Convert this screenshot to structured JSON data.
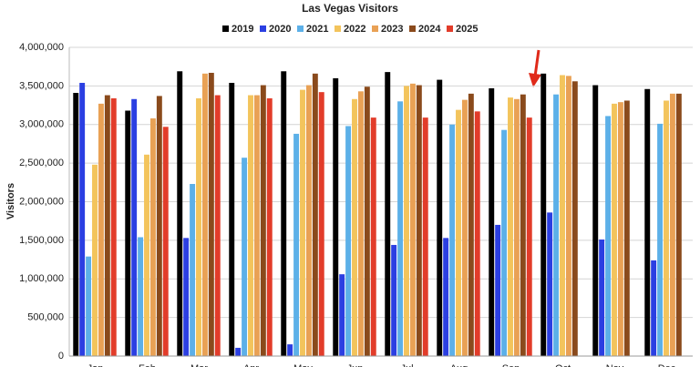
{
  "chart_data": {
    "type": "bar",
    "title": "Las Vegas Visitors",
    "y_label": "Visitors",
    "categories": [
      "Jan",
      "Feb",
      "Mar",
      "Apr",
      "May",
      "Jun",
      "Jul",
      "Aug",
      "Sep",
      "Oct",
      "Nov",
      "Dec"
    ],
    "series": [
      {
        "name": "2019",
        "color": "#000000",
        "values": [
          3410000,
          3180000,
          3690000,
          3540000,
          3690000,
          3600000,
          3680000,
          3580000,
          3470000,
          3660000,
          3510000,
          3460000
        ]
      },
      {
        "name": "2020",
        "color": "#2b3fe2",
        "values": [
          3540000,
          3330000,
          1530000,
          107000,
          152000,
          1060000,
          1440000,
          1530000,
          1700000,
          1860000,
          1510000,
          1240000
        ]
      },
      {
        "name": "2021",
        "color": "#5cb0e8",
        "values": [
          1290000,
          1540000,
          2230000,
          2570000,
          2880000,
          2980000,
          3300000,
          3000000,
          2930000,
          3390000,
          3110000,
          3010000
        ]
      },
      {
        "name": "2022",
        "color": "#f3c45c",
        "values": [
          2480000,
          2610000,
          3340000,
          3380000,
          3450000,
          3330000,
          3500000,
          3190000,
          3350000,
          3640000,
          3270000,
          3310000
        ]
      },
      {
        "name": "2023",
        "color": "#e9a155",
        "values": [
          3270000,
          3080000,
          3660000,
          3380000,
          3510000,
          3430000,
          3530000,
          3320000,
          3330000,
          3630000,
          3290000,
          3400000
        ]
      },
      {
        "name": "2024",
        "color": "#8a4a1c",
        "values": [
          3380000,
          3370000,
          3670000,
          3510000,
          3660000,
          3490000,
          3510000,
          3400000,
          3390000,
          3560000,
          3310000,
          3400000
        ]
      },
      {
        "name": "2025",
        "color": "#e23c2a",
        "values": [
          3340000,
          2970000,
          3380000,
          3340000,
          3420000,
          3090000,
          3090000,
          3170000,
          3090000,
          null,
          null,
          null
        ]
      }
    ],
    "ylim": [
      0,
      4000000
    ],
    "yticks": [
      {
        "value": 0,
        "label": "0"
      },
      {
        "value": 500000,
        "label": "500,000"
      },
      {
        "value": 1000000,
        "label": "1,000,000"
      },
      {
        "value": 1500000,
        "label": "1,500,000"
      },
      {
        "value": 2000000,
        "label": "2,000,000"
      },
      {
        "value": 2500000,
        "label": "2,500,000"
      },
      {
        "value": 3000000,
        "label": "3,000,000"
      },
      {
        "value": 3500000,
        "label": "3,500,000"
      },
      {
        "value": 4000000,
        "label": "4,000,000"
      }
    ],
    "grid": true,
    "legend": "top"
  }
}
